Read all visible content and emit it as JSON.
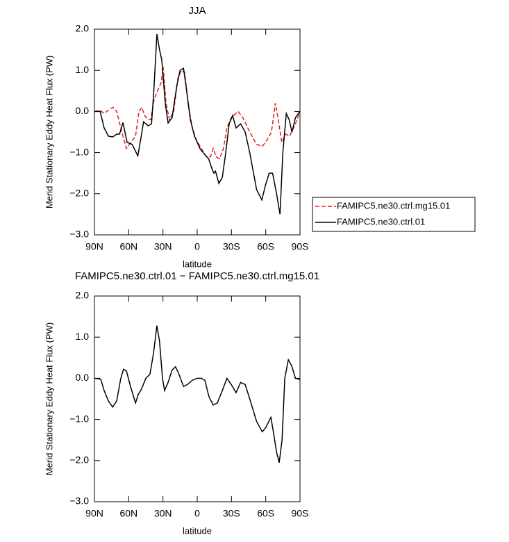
{
  "chart_data": [
    {
      "type": "line",
      "title": "JJA",
      "xlabel": "latitude",
      "ylabel": "Merid Stationary Eddy Heat Flux (PW)",
      "xlim": [
        90,
        -90
      ],
      "xticks": [
        {
          "value": 90,
          "label": "90N"
        },
        {
          "value": 60,
          "label": "60N"
        },
        {
          "value": 30,
          "label": "30N"
        },
        0,
        {
          "value": -30,
          "label": "30S"
        },
        {
          "value": -60,
          "label": "60S"
        },
        {
          "value": -90,
          "label": "90S"
        }
      ],
      "ylim": [
        -3,
        2
      ],
      "yticks": [
        {
          "value": 2,
          "label": "2.0"
        },
        {
          "value": 1,
          "label": "1.0"
        },
        {
          "value": 0,
          "label": "0.0"
        },
        {
          "value": -1,
          "label": "−1.0"
        },
        {
          "value": -2,
          "label": "−2.0"
        },
        {
          "value": -3,
          "label": "−3.0"
        }
      ],
      "legend": "right",
      "series": [
        {
          "name": "FAMIPC5.ne30.ctrl.mg15.01",
          "color": "#e0201f",
          "dashed": true,
          "x": [
            90,
            84.5,
            81.5,
            77,
            73.6,
            70.5,
            66,
            62,
            58,
            54,
            51,
            48.6,
            46,
            43,
            40.7,
            37.7,
            34,
            31.6,
            29.8,
            27.3,
            24.3,
            20.6,
            17,
            14,
            11,
            8,
            4.3,
            0.6,
            -3.6,
            -8,
            -11.6,
            -14,
            -16.5,
            -19.5,
            -23,
            -26,
            -29.8,
            -35.8,
            -40,
            -46,
            -52,
            -57,
            -61,
            -65,
            -68.4,
            -71,
            -74,
            -77.6,
            -81,
            -86,
            -90
          ],
          "values": [
            0,
            0.02,
            -0.05,
            0.05,
            0.1,
            0,
            -0.5,
            -0.9,
            -0.75,
            -0.6,
            0,
            0.1,
            -0.1,
            -0.2,
            -0.2,
            0.3,
            0.55,
            0.7,
            1.08,
            0.2,
            -0.2,
            0,
            0.8,
            1.0,
            0.95,
            0.2,
            -0.4,
            -0.7,
            -0.9,
            -1.1,
            -1.1,
            -0.9,
            -1.1,
            -1.15,
            -0.9,
            -0.4,
            -0.15,
            0,
            -0.15,
            -0.5,
            -0.8,
            -0.85,
            -0.7,
            -0.5,
            0.2,
            -0.2,
            -0.75,
            -0.55,
            -0.6,
            -0.3,
            0
          ]
        },
        {
          "name": "FAMIPC5.ne30.ctrl.01",
          "color": "#000000",
          "dashed": false,
          "x": [
            90,
            85,
            81.5,
            77.8,
            74,
            70.5,
            68,
            65,
            61.4,
            57,
            52,
            49,
            47,
            43,
            40,
            38,
            35.3,
            33,
            31,
            28,
            25.5,
            22,
            18,
            15,
            12,
            9.7,
            6,
            2.4,
            -2.4,
            -6.7,
            -10,
            -13,
            -14.6,
            -16,
            -19,
            -22,
            -25,
            -28,
            -31,
            -34,
            -38,
            -42,
            -46,
            -52,
            -56.6,
            -59.7,
            -63,
            -66,
            -69.5,
            -72.5,
            -75,
            -78,
            -80.5,
            -83,
            -86,
            -90
          ],
          "values": [
            0,
            0,
            -0.4,
            -0.6,
            -0.62,
            -0.55,
            -0.55,
            -0.27,
            -0.75,
            -0.8,
            -1.08,
            -0.6,
            -0.25,
            -0.35,
            -0.3,
            0.5,
            1.88,
            1.5,
            1.25,
            0.2,
            -0.28,
            -0.15,
            0.6,
            1.0,
            1.05,
            0.6,
            -0.2,
            -0.6,
            -0.9,
            -1.05,
            -1.15,
            -1.4,
            -1.5,
            -1.45,
            -1.75,
            -1.6,
            -1.0,
            -0.3,
            -0.1,
            -0.4,
            -0.3,
            -0.5,
            -1.0,
            -1.9,
            -2.15,
            -1.8,
            -1.5,
            -1.5,
            -2.0,
            -2.5,
            -1.0,
            -0.05,
            -0.2,
            -0.5,
            -0.15,
            0
          ]
        }
      ]
    },
    {
      "type": "line",
      "title": "FAMIPC5.ne30.ctrl.01  −  FAMIPC5.ne30.ctrl.mg15.01",
      "xlabel": "latitude",
      "ylabel": "Merid Stationary Eddy Heat Flux (PW)",
      "xlim": [
        90,
        -90
      ],
      "xticks": [
        {
          "value": 90,
          "label": "90N"
        },
        {
          "value": 60,
          "label": "60N"
        },
        {
          "value": 30,
          "label": "30N"
        },
        0,
        {
          "value": -30,
          "label": "30S"
        },
        {
          "value": -60,
          "label": "60S"
        },
        {
          "value": -90,
          "label": "90S"
        }
      ],
      "ylim": [
        -3,
        2
      ],
      "yticks": [
        {
          "value": 2,
          "label": "2.0"
        },
        {
          "value": 1,
          "label": "1.0"
        },
        {
          "value": 0,
          "label": "0.0"
        },
        {
          "value": -1,
          "label": "−1.0"
        },
        {
          "value": -2,
          "label": "−2.0"
        },
        {
          "value": -3,
          "label": "−3.0"
        }
      ],
      "series": [
        {
          "color": "#000000",
          "dashed": false,
          "x": [
            90,
            84.5,
            81.5,
            77.8,
            74,
            70.5,
            66.9,
            64.5,
            62,
            58.4,
            54,
            51.7,
            48.6,
            45,
            41.4,
            38.3,
            35.3,
            33,
            30.4,
            28.6,
            25.5,
            22,
            19,
            16,
            12,
            8.5,
            4.3,
            0,
            -3.6,
            -6.7,
            -10.3,
            -14,
            -17.6,
            -22,
            -26,
            -29.8,
            -34,
            -38,
            -42,
            -46,
            -52,
            -57,
            -60,
            -64.5,
            -66.7,
            -69.5,
            -71.8,
            -74.3,
            -76.7,
            -79.8,
            -82.8,
            -86,
            -90
          ],
          "values": [
            0,
            -0.02,
            -0.3,
            -0.55,
            -0.7,
            -0.55,
            0,
            0.22,
            0.18,
            -0.2,
            -0.6,
            -0.4,
            -0.25,
            0,
            0.1,
            0.6,
            1.28,
            0.9,
            0,
            -0.3,
            -0.1,
            0.2,
            0.28,
            0.1,
            -0.2,
            -0.15,
            -0.05,
            0,
            0,
            -0.05,
            -0.45,
            -0.65,
            -0.6,
            -0.3,
            0,
            -0.15,
            -0.35,
            -0.1,
            -0.15,
            -0.5,
            -1.05,
            -1.3,
            -1.2,
            -0.95,
            -1.3,
            -1.8,
            -2.05,
            -1.5,
            0,
            0.45,
            0.3,
            0,
            -0.03
          ]
        }
      ]
    }
  ]
}
